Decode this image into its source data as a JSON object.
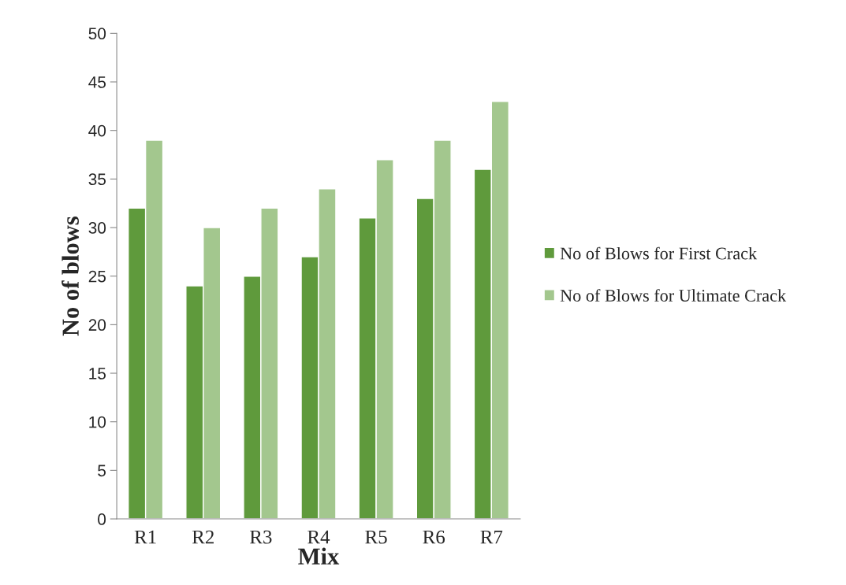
{
  "chart_data": {
    "type": "bar",
    "xlabel": "Mix",
    "ylabel": "No of blows",
    "categories": [
      "R1",
      "R2",
      "R3",
      "R4",
      "R5",
      "R6",
      "R7"
    ],
    "series": [
      {
        "name": "No of Blows for First Crack",
        "color": "#5f9a3c",
        "values": [
          32,
          24,
          25,
          27,
          31,
          33,
          36
        ]
      },
      {
        "name": "No of Blows for Ultimate Crack",
        "color": "#a3c78e",
        "values": [
          39,
          30,
          32,
          34,
          37,
          39,
          43
        ]
      }
    ],
    "ylim": [
      0,
      50
    ],
    "yticks": [
      0,
      5,
      10,
      15,
      20,
      25,
      30,
      35,
      40,
      45,
      50
    ],
    "grid": false,
    "legend": "right"
  }
}
